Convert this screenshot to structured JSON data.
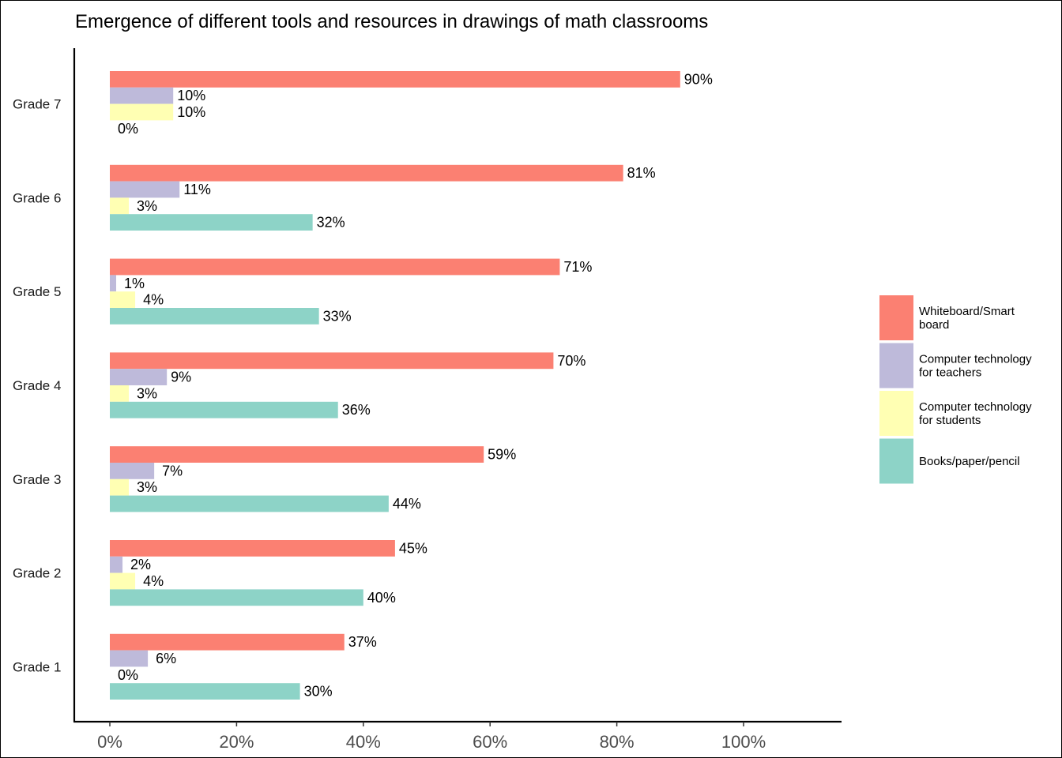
{
  "chart_data": {
    "type": "bar",
    "orientation": "horizontal",
    "title": "Emergence of different tools and resources in drawings of math classrooms",
    "xlabel": "",
    "ylabel": "",
    "categories": [
      "Grade 7",
      "Grade 6",
      "Grade 5",
      "Grade 4",
      "Grade 3",
      "Grade 2",
      "Grade 1"
    ],
    "xlim": [
      0,
      115
    ],
    "ticks": [
      0,
      20,
      40,
      60,
      80,
      100
    ],
    "tick_labels": [
      "0%",
      "20%",
      "40%",
      "60%",
      "80%",
      "100%"
    ],
    "grid": false,
    "legend_position": "right",
    "series": [
      {
        "name": "Whiteboard/Smart board",
        "legend_lines": [
          "Whiteboard/Smart",
          "board"
        ],
        "color": "#fb8072",
        "values": [
          90,
          81,
          71,
          70,
          59,
          45,
          37
        ],
        "labels": [
          "90%",
          "81%",
          "71%",
          "70%",
          "59%",
          "45%",
          "37%"
        ]
      },
      {
        "name": "Computer technology for teachers",
        "legend_lines": [
          "Computer technology",
          "for teachers"
        ],
        "color": "#bebada",
        "values": [
          10,
          11,
          1,
          9,
          7,
          2,
          6
        ],
        "labels": [
          "10%",
          "11%",
          "1%",
          "9%",
          "7%",
          "2%",
          "6%"
        ]
      },
      {
        "name": "Computer technology for students",
        "legend_lines": [
          "Computer technology",
          "for students"
        ],
        "color": "#ffffb3",
        "values": [
          10,
          3,
          4,
          3,
          3,
          4,
          0
        ],
        "labels": [
          "10%",
          "3%",
          "4%",
          "3%",
          "3%",
          "4%",
          "0%"
        ]
      },
      {
        "name": "Books/paper/pencil",
        "legend_lines": [
          "Books/paper/pencil"
        ],
        "color": "#8dd3c7",
        "values": [
          0,
          32,
          33,
          36,
          44,
          40,
          30
        ],
        "labels": [
          "0%",
          "32%",
          "33%",
          "36%",
          "44%",
          "40%",
          "30%"
        ]
      }
    ]
  }
}
